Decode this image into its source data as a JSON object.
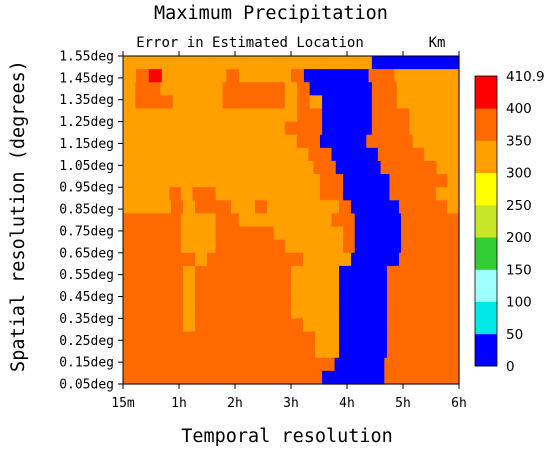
{
  "chart_data": {
    "type": "heatmap",
    "title": "Maximum Precipitation",
    "subtitle": "Error in Estimated Location",
    "units": "Km",
    "xlabel": "Temporal resolution",
    "ylabel": "Spatial resolution (degrees)",
    "x_ticks": [
      "15m",
      "1h",
      "2h",
      "3h",
      "4h",
      "5h",
      "6h"
    ],
    "y_ticks": [
      "0.05deg",
      "0.15deg",
      "0.25deg",
      "0.35deg",
      "0.45deg",
      "0.55deg",
      "0.65deg",
      "0.75deg",
      "0.85deg",
      "0.95deg",
      "1.05deg",
      "1.15deg",
      "1.25deg",
      "1.35deg",
      "1.45deg",
      "1.55deg"
    ],
    "grid": false,
    "colorbar": {
      "position": "right",
      "tick_labels": [
        "410.9",
        "400",
        "350",
        "300",
        "250",
        "200",
        "150",
        "100",
        "50",
        "0"
      ],
      "levels": [
        0,
        50,
        100,
        150,
        200,
        250,
        300,
        350,
        400,
        410.9
      ],
      "colors": [
        "#0000ff",
        "#00e8e8",
        "#a0ffff",
        "#32cd32",
        "#c8e628",
        "#ffff00",
        "#ff9f00",
        "#ff6a00",
        "#ff0000"
      ]
    },
    "n_x_steps": 24,
    "n_y_steps": 31,
    "grid_rows_from_top": [
      "OOOOOOOOOOOOOOOOOOOOBBBBBBB",
      "ORSOOOOOROOOORBBBBBRROOOOO",
      "ORROOOOORRRRRORBBBBBRROOOOO",
      "ORRROOOORRRRROROBBBBRROOOOO",
      "OOOOOOOOOOOOOORRBBBBRRROOOO",
      "OOOOOOOOOOOOORRRBBBBRRROOOO",
      "OOOOOOOOOOOOOOORRBBBBRRRROOOO",
      "OOOOOOOOOOOOOOOORRBBBBRRRROOO",
      "OOOOOOOOOOOOOOOOORRBBBBRRRRROO",
      "OOOOOOOOOOOOOOOOORRBBBBRRRRRO",
      "OOOORORROOOOOOOOORRBBBBRRRROO",
      "OOOORORRROOROOOOOORBBBBRRRRO",
      "RRRRROOORROOOOOOOORRBBBBRRRRR",
      "RRRRROOORRRRROOOOOORBBBBRRRRR",
      "RRRRROOORRRRRROOOOORBBBBRRRRR",
      "RRRRRRORRRRRRRROOOOBBBBRRRRR",
      "RRRRRORRRRRRRROOOOBBBBRRRRRR",
      "RRRRRORRRRRRRROOOOBBBBRRRRRR",
      "RRRRRORRRRRRRROOOOBBBBRRRRRR",
      "RRRRRORRRRRRRROOOOBBBBRRRRRR",
      "RRRRRORRRRRRRRROOOBBBBRRRRRR",
      "RRRRRRRRRRRRRRRROOBBBBRRRRRR",
      "RRRRRRRRRRRRRRRROOBBBBRRRRRR",
      "RRRRRRRRRRRRRRRRRBBBBRRRRRR",
      "RRRRRRRRRRRRRRRRBBBBBRRRRRR"
    ]
  }
}
